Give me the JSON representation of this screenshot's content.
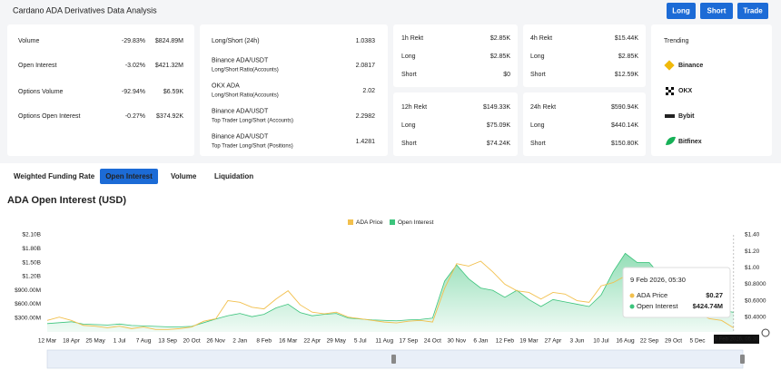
{
  "header": {
    "title": "Cardano ADA Derivatives Data Analysis",
    "buttons": [
      "Long",
      "Short",
      "Trade"
    ]
  },
  "market_stats": [
    {
      "label": "Volume",
      "change": "-29.83%",
      "value": "$824.89M"
    },
    {
      "label": "Open Interest",
      "change": "-3.02%",
      "value": "$421.32M"
    },
    {
      "label": "Options Volume",
      "change": "-92.94%",
      "value": "$6.59K"
    },
    {
      "label": "Options Open Interest",
      "change": "-0.27%",
      "value": "$374.92K"
    }
  ],
  "ratios": [
    {
      "title": "Long/Short (24h)",
      "value": "1.0383"
    },
    {
      "title": "Binance ADA/USDT",
      "subtitle": "Long/Short Ratio(Accounts)",
      "value": "2.0817"
    },
    {
      "title": "OKX ADA",
      "subtitle": "Long/Short Ratio(Accounts)",
      "value": "2.02"
    },
    {
      "title": "Binance ADA/USDT",
      "subtitle": "Top Trader Long/Short (Accounts)",
      "value": "2.2982"
    },
    {
      "title": "Binance ADA/USDT",
      "subtitle": "Top Trader Long/Short (Positions)",
      "value": "1.4281"
    }
  ],
  "rekt": [
    {
      "title": "1h Rekt",
      "total": "$2.85K",
      "long_label": "Long",
      "long": "$2.85K",
      "short_label": "Short",
      "short": "$0"
    },
    {
      "title": "4h Rekt",
      "total": "$15.44K",
      "long_label": "Long",
      "long": "$2.85K",
      "short_label": "Short",
      "short": "$12.59K"
    },
    {
      "title": "12h Rekt",
      "total": "$149.33K",
      "long_label": "Long",
      "long": "$75.09K",
      "short_label": "Short",
      "short": "$74.24K"
    },
    {
      "title": "24h Rekt",
      "total": "$590.94K",
      "long_label": "Long",
      "long": "$440.14K",
      "short_label": "Short",
      "short": "$150.80K"
    }
  ],
  "trending": {
    "title": "Trending",
    "items": [
      "Binance",
      "OKX",
      "Bybit",
      "Bitfinex"
    ]
  },
  "tabs": {
    "items": [
      "Weighted Funding Rate",
      "Open Interest",
      "Volume",
      "Liquidation"
    ],
    "active": 1
  },
  "chart_data": {
    "type": "area",
    "title": "ADA Open Interest (USD)",
    "legend": "top",
    "grid": false,
    "categories": [
      "12 Mar",
      null,
      "18 Apr",
      null,
      "25 May",
      null,
      "1 Jul",
      null,
      "7 Aug",
      null,
      "13 Sep",
      null,
      "20 Oct",
      null,
      "26 Nov",
      null,
      "2 Jan",
      null,
      "8 Feb",
      null,
      "16 Mar",
      null,
      "22 Apr",
      null,
      "29 May",
      null,
      "5 Jul",
      null,
      "11 Aug",
      null,
      "17 Sep",
      null,
      "24 Oct",
      null,
      "30 Nov",
      null,
      "6 Jan",
      null,
      "12 Feb",
      null,
      "19 Mar",
      null,
      "27 Apr",
      null,
      "3 Jun",
      null,
      "10 Jul",
      null,
      "16 Aug",
      null,
      "22 Sep",
      null,
      "29 Oct",
      null,
      "5 Dec",
      null,
      null,
      null
    ],
    "series": [
      {
        "name": "ADA Price",
        "type": "line",
        "axis": "y2",
        "color": "#f2c04d",
        "values": [
          0.36,
          0.4,
          0.36,
          0.3,
          0.29,
          0.27,
          0.29,
          0.26,
          0.28,
          0.25,
          0.25,
          0.26,
          0.28,
          0.35,
          0.38,
          0.6,
          0.58,
          0.52,
          0.5,
          0.62,
          0.72,
          0.55,
          0.46,
          0.44,
          0.46,
          0.4,
          0.38,
          0.36,
          0.34,
          0.33,
          0.35,
          0.36,
          0.34,
          0.75,
          1.05,
          1.02,
          1.08,
          0.95,
          0.8,
          0.72,
          0.7,
          0.62,
          0.7,
          0.68,
          0.6,
          0.58,
          0.78,
          0.82,
          0.9,
          0.85,
          0.83,
          0.8,
          0.62,
          0.5,
          0.44,
          0.38,
          0.36,
          0.27
        ]
      },
      {
        "name": "Open Interest",
        "type": "area",
        "axis": "y",
        "color": "#3cc47c",
        "values": [
          180000000,
          200000000,
          220000000,
          170000000,
          160000000,
          150000000,
          170000000,
          140000000,
          130000000,
          120000000,
          110000000,
          110000000,
          120000000,
          200000000,
          280000000,
          350000000,
          400000000,
          330000000,
          380000000,
          520000000,
          600000000,
          420000000,
          350000000,
          380000000,
          400000000,
          300000000,
          280000000,
          260000000,
          250000000,
          240000000,
          260000000,
          270000000,
          300000000,
          1100000000,
          1450000000,
          1150000000,
          950000000,
          900000000,
          750000000,
          900000000,
          700000000,
          550000000,
          700000000,
          650000000,
          600000000,
          550000000,
          800000000,
          1300000000,
          1700000000,
          1500000000,
          1500000000,
          1200000000,
          1000000000,
          700000000,
          600000000,
          500000000,
          470000000,
          424740000
        ]
      }
    ],
    "ylim": [
      0,
      2100000000
    ],
    "yticks": [
      {
        "value": 300000000,
        "label": "$300.00M"
      },
      {
        "value": 600000000,
        "label": "$600.00M"
      },
      {
        "value": 900000000,
        "label": "$900.00M"
      },
      {
        "value": 1200000000,
        "label": "$1.20B"
      },
      {
        "value": 1500000000,
        "label": "$1.50B"
      },
      {
        "value": 1800000000,
        "label": "$1.80B"
      },
      {
        "value": 2100000000,
        "label": "$2.10B"
      }
    ],
    "y2lim": [
      0.22,
      1.4
    ],
    "y2ticks": [
      {
        "value": 0.4,
        "label": "$0.4000"
      },
      {
        "value": 0.6,
        "label": "$0.6000"
      },
      {
        "value": 0.8,
        "label": "$0.8000"
      },
      {
        "value": 1.0,
        "label": "$1.00"
      },
      {
        "value": 1.2,
        "label": "$1.20"
      },
      {
        "value": 1.4,
        "label": "$1.40"
      }
    ],
    "tooltip": {
      "title": "9 Feb 2026, 05:30",
      "values": [
        "$0.27",
        "$424.74M"
      ]
    }
  }
}
